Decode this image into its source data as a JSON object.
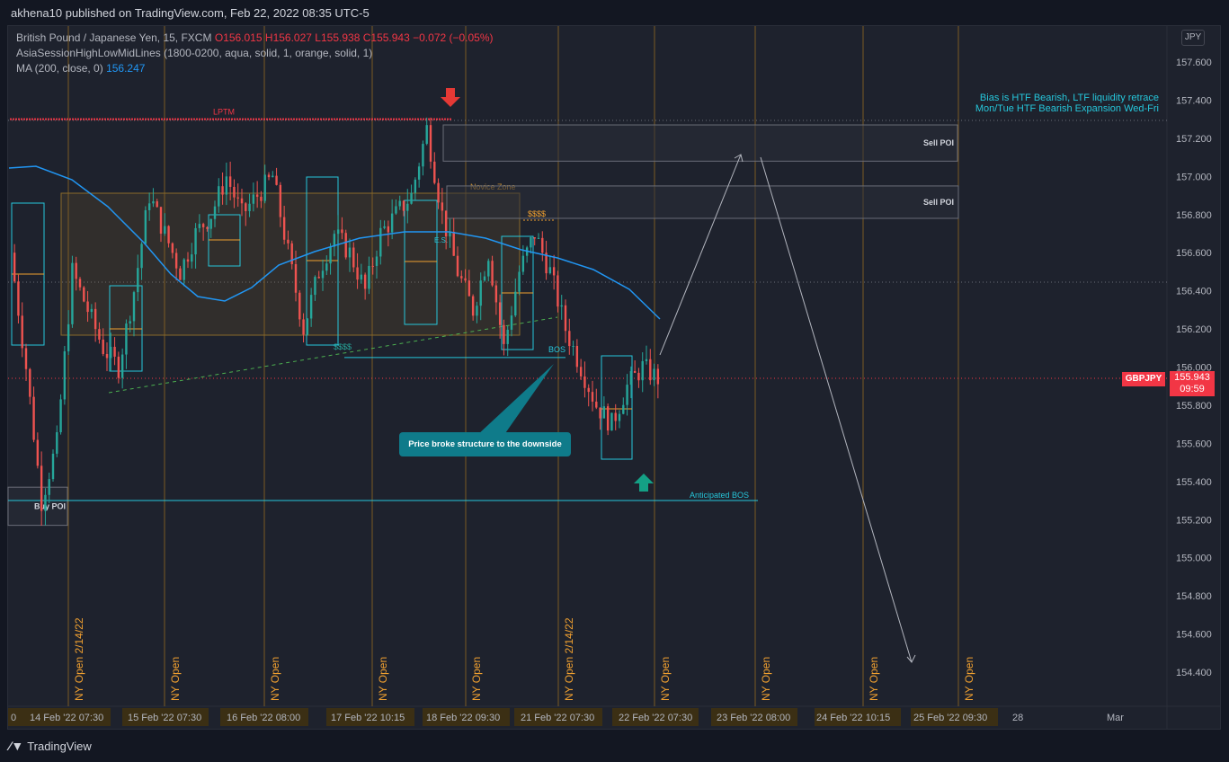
{
  "header": {
    "published": "akhena10 published on TradingView.com, Feb 22, 2022 08:35 UTC-5"
  },
  "legend": {
    "symbol_line": "British Pound / Japanese Yen, 15, FXCM",
    "ohlc": {
      "o_label": "O",
      "o": "156.015",
      "h_label": "H",
      "h": "156.027",
      "l_label": "L",
      "l": "155.938",
      "c_label": "C",
      "c": "155.943",
      "change": "−0.072 (−0.05%)"
    },
    "indicator1": "AsiaSessionHighLowMidLines (1800-0200, aqua, solid, 1, orange, solid, 1)",
    "indicator2_label": "MA (200, close, 0)",
    "indicator2_value": "156.247"
  },
  "currency_button": "JPY",
  "price_axis": {
    "ticks": [
      "157.600",
      "157.400",
      "157.200",
      "157.000",
      "156.800",
      "156.600",
      "156.400",
      "156.200",
      "156.000",
      "155.800",
      "155.600",
      "155.400",
      "155.200",
      "155.000",
      "154.800",
      "154.600",
      "154.400"
    ],
    "current_price": "155.943",
    "countdown": "09:59",
    "symbol_badge": "GBPJPY"
  },
  "time_axis": {
    "labels": [
      {
        "text": "0"
      },
      {
        "text": "14 Feb '22   07:30"
      },
      {
        "text": "15 Feb '22   07:30"
      },
      {
        "text": "16 Feb '22   08:00"
      },
      {
        "text": "17 Feb '22   10:15"
      },
      {
        "text": "18 Feb '22   09:30"
      },
      {
        "text": "21 Feb '22   07:30"
      },
      {
        "text": "22 Feb '22   07:30"
      },
      {
        "text": "23 Feb '22   08:00"
      },
      {
        "text": "24 Feb '22   10:15"
      },
      {
        "text": "25 Feb '22   09:30"
      },
      {
        "text": "28"
      },
      {
        "text": "Mar"
      }
    ]
  },
  "annotations": {
    "lptm": "LPTM",
    "novice_zone": "Novice Zone",
    "es": "E.S.",
    "dollars1": "$$$$",
    "dollars2": "$$$$",
    "bos": "BOS",
    "anticipated_bos": "Anticipated BOS",
    "sell_poi_1": "Sell POI",
    "sell_poi_2": "Sell POI",
    "buy_poi": "Buy POI",
    "callout": "Price broke structure to the downside",
    "bias_line1": "Bias is HTF Bearish, LTF liquidity retrace",
    "bias_line2": "Mon/Tue HTF Bearish Expansion Wed-Fri",
    "session_labels": [
      "NY Open 2/14/22",
      "NY Open",
      "NY Open",
      "NY Open",
      "NY Open",
      "NY Open 2/14/22",
      "NY Open",
      "NY Open",
      "NY Open",
      "NY Open"
    ]
  },
  "footer": {
    "brand": "TradingView"
  },
  "chart_data": {
    "type": "candlestick",
    "symbol": "GBPJPY",
    "interval": "15",
    "ylim": [
      154.25,
      157.75
    ],
    "current_price": 155.943,
    "ma200_last": 156.247,
    "price_path_hint": [
      156.6,
      156.0,
      155.3,
      155.6,
      156.5,
      156.3,
      156.1,
      156.0,
      156.4,
      156.9,
      156.7,
      156.5,
      156.7,
      156.8,
      157.0,
      156.8,
      156.9,
      157.0,
      156.6,
      156.2,
      156.5,
      156.7,
      156.6,
      156.4,
      156.7,
      156.8,
      156.9,
      157.25,
      156.8,
      156.5,
      156.3,
      156.6,
      156.1,
      156.5,
      156.7,
      156.5,
      156.2,
      156.0,
      155.8,
      155.7,
      155.9,
      156.0,
      155.94
    ],
    "levels": {
      "lptm": 157.3,
      "anticipated_bos": 155.3,
      "bos": 156.05,
      "sell_poi_1": [
        157.08,
        157.27
      ],
      "sell_poi_2": [
        156.78,
        156.95
      ],
      "buy_poi": [
        155.17,
        155.37
      ]
    }
  }
}
